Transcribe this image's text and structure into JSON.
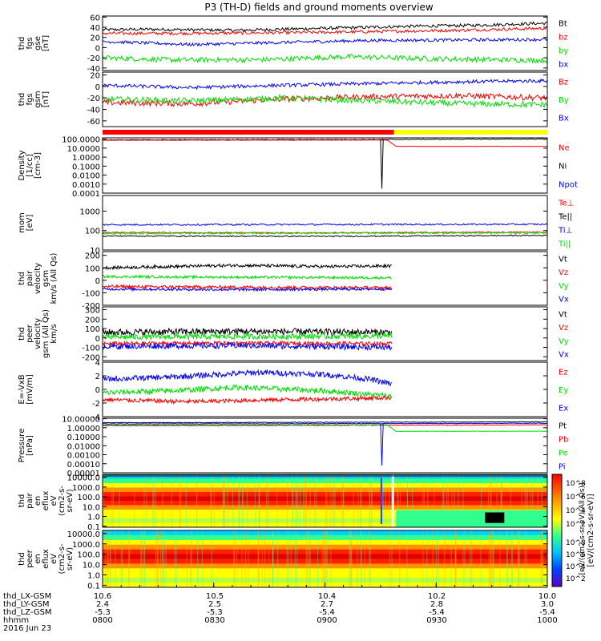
{
  "title": "P3 (TH-D) fields and ground moments overview",
  "footer": {
    "rows": [
      {
        "label": "thd_LX-GSM",
        "values": [
          "10.6",
          "10.5",
          "10.4",
          "10.2",
          "10.0"
        ]
      },
      {
        "label": "thd_LY-GSM",
        "values": [
          "2.4",
          "2.5",
          "2.7",
          "2.8",
          "3.0"
        ]
      },
      {
        "label": "thd_LZ-GSM",
        "values": [
          "-5.3",
          "-5.3",
          "-5.4",
          "-5.4",
          "-5.4"
        ]
      },
      {
        "label": "hhmm",
        "values": [
          "0800",
          "0830",
          "0900",
          "0930",
          "1000"
        ]
      }
    ],
    "date": "2016 Jun 23"
  },
  "colorbar": {
    "label1": "[eV/(cm2-s-sr-eV)]",
    "label2": "[eV/(cm2-s-sr-eV)(All Qs)]",
    "ticks1": [
      "10^8",
      "10^6",
      "10^4",
      "10^2"
    ],
    "ticks2": [
      "10^8",
      "10^6",
      "10^4",
      "10^2"
    ]
  },
  "colors": {
    "black": "#000000",
    "red": "#ff0000",
    "green": "#00e000",
    "blue": "#0000ff",
    "yellow": "#ffff00"
  },
  "mode_bar": {
    "segments": [
      {
        "color": "red",
        "from": 0,
        "to": 0.655
      },
      {
        "color": "yellow",
        "from": 0.655,
        "to": 1
      }
    ]
  },
  "chart_data": [
    {
      "type": "line",
      "ylabel": [
        "thd",
        "fgs",
        "gse",
        "[nT]"
      ],
      "yticks": [
        "60",
        "40",
        "20",
        "0",
        "-20",
        "-40"
      ],
      "ylim": [
        -45,
        62
      ],
      "legend": [
        {
          "name": "Bt",
          "color": "black"
        },
        {
          "name": "bz",
          "color": "red"
        },
        {
          "name": "by",
          "color": "green"
        },
        {
          "name": "bx",
          "color": "blue"
        }
      ],
      "series": [
        {
          "name": "Bt",
          "color": "black",
          "pts": [
            [
              0,
              35
            ],
            [
              0.1,
              36
            ],
            [
              0.3,
              34
            ],
            [
              0.5,
              38
            ],
            [
              0.7,
              42
            ],
            [
              0.85,
              44
            ],
            [
              1,
              48
            ]
          ],
          "noise": 3
        },
        {
          "name": "bz",
          "color": "red",
          "pts": [
            [
              0,
              28
            ],
            [
              0.2,
              28
            ],
            [
              0.5,
              30
            ],
            [
              0.8,
              34
            ],
            [
              1,
              38
            ]
          ],
          "noise": 3
        },
        {
          "name": "by",
          "color": "green",
          "pts": [
            [
              0,
              -20
            ],
            [
              0.15,
              -24
            ],
            [
              0.35,
              -24
            ],
            [
              0.55,
              -18
            ],
            [
              0.75,
              -22
            ],
            [
              1,
              -25
            ]
          ],
          "noise": 5
        },
        {
          "name": "bx",
          "color": "blue",
          "pts": [
            [
              0,
              12
            ],
            [
              0.2,
              6
            ],
            [
              0.4,
              10
            ],
            [
              0.6,
              14
            ],
            [
              0.8,
              15
            ],
            [
              1,
              16
            ]
          ],
          "noise": 3
        }
      ]
    },
    {
      "type": "line",
      "ylabel": [
        "thd",
        "fgs",
        "gsm",
        "[nT]"
      ],
      "yticks": [
        "20",
        "0",
        "-20",
        "-40",
        "-60"
      ],
      "ylim": [
        -70,
        25
      ],
      "legend": [
        {
          "name": "Bz",
          "color": "red"
        },
        {
          "name": "By",
          "color": "green"
        },
        {
          "name": "Bx",
          "color": "blue"
        }
      ],
      "series": [
        {
          "name": "Bz",
          "color": "red",
          "pts": [
            [
              0,
              -28
            ],
            [
              0.2,
              -30
            ],
            [
              0.4,
              -22
            ],
            [
              0.6,
              -18
            ],
            [
              0.8,
              -16
            ],
            [
              1,
              -20
            ]
          ],
          "noise": 5
        },
        {
          "name": "By",
          "color": "green",
          "pts": [
            [
              0,
              -22
            ],
            [
              0.2,
              -25
            ],
            [
              0.4,
              -20
            ],
            [
              0.6,
              -25
            ],
            [
              0.8,
              -30
            ],
            [
              1,
              -32
            ]
          ],
          "noise": 5
        },
        {
          "name": "Bx",
          "color": "blue",
          "pts": [
            [
              0,
              2
            ],
            [
              0.2,
              -2
            ],
            [
              0.4,
              2
            ],
            [
              0.6,
              5
            ],
            [
              0.8,
              8
            ],
            [
              1,
              10
            ]
          ],
          "noise": 3
        }
      ]
    },
    {
      "type": "line",
      "log": true,
      "ylabel": [
        "Density",
        "[1/cc]",
        "[cm-3]"
      ],
      "yticks": [
        "100.0000",
        "10.0000",
        "1.0000",
        "0.1000",
        "0.0100",
        "0.0010",
        "0.0001"
      ],
      "ylim": [
        -4,
        2.15
      ],
      "legend": [
        {
          "name": "Ne",
          "color": "red"
        },
        {
          "name": "Ni",
          "color": "black"
        },
        {
          "name": "Npot",
          "color": "blue"
        }
      ],
      "series": [
        {
          "name": "Ni",
          "color": "black",
          "pts": [
            [
              0,
              1.92
            ],
            [
              0.6,
              1.96
            ],
            [
              1,
              2.02
            ]
          ],
          "noise": 0.04
        },
        {
          "name": "Ne",
          "color": "red",
          "pts": [
            [
              0,
              1.88
            ],
            [
              0.64,
              1.9
            ],
            [
              0.66,
              1.2
            ],
            [
              1,
              1.2
            ]
          ],
          "noise": 0.02
        }
      ]
    },
    {
      "type": "line",
      "log": true,
      "ylabel": [
        "mom",
        "[eV]"
      ],
      "yticks": [
        "1000",
        "100",
        "10"
      ],
      "ylim": [
        1,
        3.8
      ],
      "legend": [
        {
          "name": "Te⊥",
          "color": "red"
        },
        {
          "name": "Te||",
          "color": "black"
        },
        {
          "name": "Ti⊥",
          "color": "blue"
        },
        {
          "name": "Ti||",
          "color": "green"
        }
      ],
      "series": [
        {
          "name": "Ti⊥",
          "color": "blue",
          "pts": [
            [
              0,
              2.3
            ],
            [
              1,
              2.32
            ]
          ],
          "noise": 0.04
        },
        {
          "name": "Te⊥",
          "color": "red",
          "pts": [
            [
              0,
              1.9
            ],
            [
              0.5,
              1.88
            ],
            [
              1,
              1.92
            ]
          ],
          "noise": 0.03
        },
        {
          "name": "Ti||",
          "color": "green",
          "pts": [
            [
              0,
              1.85
            ],
            [
              1,
              1.88
            ]
          ],
          "noise": 0.04
        },
        {
          "name": "Te||",
          "color": "black",
          "pts": [
            [
              0,
              1.72
            ],
            [
              0.5,
              1.7
            ],
            [
              1,
              1.75
            ]
          ],
          "noise": 0.03
        }
      ]
    },
    {
      "type": "line",
      "ylabel": [
        "thd",
        "pair",
        "velocity",
        "gsm",
        "km/s (All Qs)"
      ],
      "yticks": [
        "200",
        "100",
        "0",
        "-100",
        "-200"
      ],
      "ylim": [
        -200,
        230
      ],
      "legend": [
        {
          "name": "Vt",
          "color": "black"
        },
        {
          "name": "Vz",
          "color": "red"
        },
        {
          "name": "Vy",
          "color": "green"
        },
        {
          "name": "Vx",
          "color": "blue"
        }
      ],
      "xend": 0.65,
      "series": [
        {
          "name": "Vt",
          "color": "black",
          "pts": [
            [
              0,
              100
            ],
            [
              0.3,
              120
            ],
            [
              0.5,
              110
            ],
            [
              0.65,
              115
            ]
          ],
          "noise": 12
        },
        {
          "name": "Vy",
          "color": "green",
          "pts": [
            [
              0,
              30
            ],
            [
              0.3,
              25
            ],
            [
              0.65,
              20
            ]
          ],
          "noise": 10
        },
        {
          "name": "Vz",
          "color": "red",
          "pts": [
            [
              0,
              -50
            ],
            [
              0.3,
              -55
            ],
            [
              0.65,
              -60
            ]
          ],
          "noise": 12
        },
        {
          "name": "Vx",
          "color": "blue",
          "pts": [
            [
              0,
              -70
            ],
            [
              0.3,
              -75
            ],
            [
              0.65,
              -70
            ]
          ],
          "noise": 10
        }
      ]
    },
    {
      "type": "line",
      "ylabel": [
        "thd",
        "peer",
        "velocity",
        "gsm (All Qs)",
        "km/s"
      ],
      "yticks": [
        "300",
        "200",
        "100",
        "0",
        "-100",
        "-200"
      ],
      "ylim": [
        -240,
        330
      ],
      "legend": [
        {
          "name": "Vt",
          "color": "black"
        },
        {
          "name": "Vz",
          "color": "red"
        },
        {
          "name": "Vy",
          "color": "green"
        },
        {
          "name": "Vx",
          "color": "blue"
        }
      ],
      "xend": 0.65,
      "series": [
        {
          "name": "Vt",
          "color": "black",
          "pts": [
            [
              0,
              60
            ],
            [
              0.3,
              70
            ],
            [
              0.65,
              60
            ]
          ],
          "noise": 35
        },
        {
          "name": "Vy",
          "color": "green",
          "pts": [
            [
              0,
              10
            ],
            [
              0.3,
              15
            ],
            [
              0.65,
              20
            ]
          ],
          "noise": 30
        },
        {
          "name": "Vz",
          "color": "red",
          "pts": [
            [
              0,
              -60
            ],
            [
              0.3,
              -55
            ],
            [
              0.65,
              -60
            ]
          ],
          "noise": 20
        },
        {
          "name": "Vx",
          "color": "blue",
          "pts": [
            [
              0,
              -90
            ],
            [
              0.3,
              -80
            ],
            [
              0.65,
              -100
            ]
          ],
          "noise": 30
        }
      ]
    },
    {
      "type": "line",
      "ylabel": [
        "E=-VxB",
        "[mV/m]"
      ],
      "yticks": [
        "4",
        "2",
        "0",
        "-2",
        "-4"
      ],
      "ylim": [
        -4,
        4
      ],
      "legend": [
        {
          "name": "Ez",
          "color": "red"
        },
        {
          "name": "Ey",
          "color": "green"
        },
        {
          "name": "Ex",
          "color": "blue"
        }
      ],
      "xend": 0.65,
      "series": [
        {
          "name": "Ex",
          "color": "blue",
          "pts": [
            [
              0,
              1.5
            ],
            [
              0.15,
              1.8
            ],
            [
              0.35,
              2.5
            ],
            [
              0.5,
              2.2
            ],
            [
              0.6,
              1.5
            ],
            [
              0.65,
              0.8
            ]
          ],
          "noise": 0.4
        },
        {
          "name": "Ey",
          "color": "green",
          "pts": [
            [
              0,
              -0.5
            ],
            [
              0.15,
              -0.2
            ],
            [
              0.3,
              0.3
            ],
            [
              0.5,
              -0.2
            ],
            [
              0.65,
              -1.0
            ]
          ],
          "noise": 0.4
        },
        {
          "name": "Ez",
          "color": "red",
          "pts": [
            [
              0,
              -1.5
            ],
            [
              0.2,
              -1.8
            ],
            [
              0.4,
              -1.5
            ],
            [
              0.6,
              -1.3
            ],
            [
              0.65,
              -1.2
            ]
          ],
          "noise": 0.3
        }
      ]
    },
    {
      "type": "line",
      "log": true,
      "ylabel": [
        "Pressure",
        "[nPa]"
      ],
      "yticks": [
        "10.00000",
        "1.00000",
        "0.10000",
        "0.01000",
        "0.00100",
        "0.00010",
        "0.00001"
      ],
      "ylim": [
        -5,
        1.05
      ],
      "legend": [
        {
          "name": "Pt",
          "color": "black"
        },
        {
          "name": "Pb",
          "color": "red"
        },
        {
          "name": "Pe",
          "color": "green"
        },
        {
          "name": "Pi",
          "color": "blue"
        }
      ],
      "series": [
        {
          "name": "Pt",
          "color": "black",
          "pts": [
            [
              0,
              0.55
            ],
            [
              0.5,
              0.6
            ],
            [
              1,
              0.65
            ]
          ],
          "noise": 0.03
        },
        {
          "name": "Pb",
          "color": "red",
          "pts": [
            [
              0,
              0.22
            ],
            [
              0.5,
              0.26
            ],
            [
              1,
              0.32
            ]
          ],
          "noise": 0.03
        },
        {
          "name": "Pe",
          "color": "green",
          "pts": [
            [
              0,
              0.3
            ],
            [
              0.64,
              0.32
            ],
            [
              0.66,
              -0.4
            ],
            [
              1,
              -0.38
            ]
          ],
          "noise": 0.02
        },
        {
          "name": "Pi",
          "color": "blue",
          "pts": [
            [
              0,
              0.42
            ],
            [
              0.5,
              0.45
            ],
            [
              1,
              0.5
            ]
          ],
          "noise": 0.03
        }
      ]
    },
    {
      "type": "heatmap",
      "ylabel": [
        "thd",
        "pair",
        "en",
        "eflux",
        "eV",
        "(cm2-s-",
        "sr-eV)"
      ],
      "yticks": [
        "10000.0",
        "1000.0",
        "100.0",
        "10.0",
        "1.0",
        "0.1"
      ],
      "ylim": [
        -1.1,
        4.3
      ]
    },
    {
      "type": "heatmap",
      "ylabel": [
        "thd",
        "peer",
        "en",
        "eflux",
        "eV",
        "(cm2-s-",
        "sr-eV)"
      ],
      "yticks": [
        "10000.0",
        "1000.0",
        "100.0",
        "10.0",
        "1.0",
        "0.1"
      ],
      "ylim": [
        -1.2,
        4.3
      ]
    }
  ]
}
